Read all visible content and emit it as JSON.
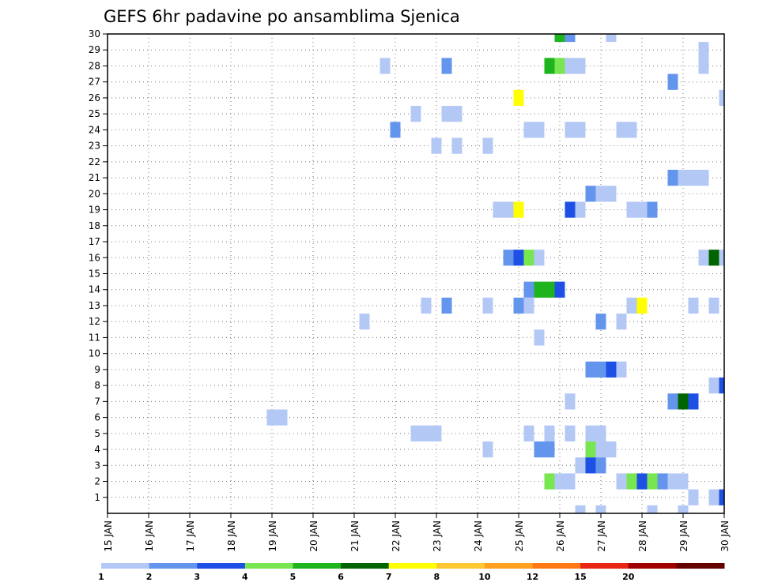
{
  "chart_data": {
    "type": "heatmap",
    "title": "GEFS 6hr padavine po ansamblima Sjenica",
    "xlabel": "",
    "ylabel": "",
    "x_ticks": [
      "15 JAN",
      "16 JAN",
      "17 JAN",
      "18 JAN",
      "19 JAN",
      "20 JAN",
      "21 JAN",
      "22 JAN",
      "23 JAN",
      "24 JAN",
      "25 JAN",
      "26 JAN",
      "27 JAN",
      "28 JAN",
      "29 JAN",
      "30 JAN"
    ],
    "y_ticks": [
      "1",
      "2",
      "3",
      "4",
      "5",
      "6",
      "7",
      "8",
      "9",
      "10",
      "11",
      "12",
      "13",
      "14",
      "15",
      "16",
      "17",
      "18",
      "19",
      "20",
      "21",
      "22",
      "23",
      "24",
      "25",
      "26",
      "27",
      "28",
      "29",
      "30"
    ],
    "x_range_days": [
      15,
      30
    ],
    "y_range_members": [
      0,
      30
    ],
    "legend": {
      "levels": [
        "1",
        "2",
        "3",
        "4",
        "5",
        "6",
        "7",
        "8",
        "10",
        "12",
        "15",
        "20"
      ],
      "colors": [
        "#b4c8f5",
        "#6495ed",
        "#1e50e6",
        "#78e650",
        "#1eb41e",
        "#006400",
        "#ffff00",
        "#ffc832",
        "#ffa01e",
        "#ff7814",
        "#e62814",
        "#a00000",
        "#640000"
      ]
    },
    "cells": [
      {
        "member": 30,
        "day": 26.0,
        "level": 5
      },
      {
        "member": 30,
        "day": 26.25,
        "level": 2
      },
      {
        "member": 30,
        "day": 27.25,
        "level": 1
      },
      {
        "member": 29,
        "day": 29.5,
        "level": 1
      },
      {
        "member": 28,
        "day": 21.75,
        "level": 1
      },
      {
        "member": 28,
        "day": 23.25,
        "level": 2
      },
      {
        "member": 28,
        "day": 25.75,
        "level": 5
      },
      {
        "member": 28,
        "day": 26.0,
        "level": 4
      },
      {
        "member": 28,
        "day": 26.25,
        "level": 1
      },
      {
        "member": 28,
        "day": 26.5,
        "level": 1
      },
      {
        "member": 28,
        "day": 29.5,
        "level": 1
      },
      {
        "member": 27,
        "day": 28.75,
        "level": 2
      },
      {
        "member": 26,
        "day": 25.0,
        "level": 7
      },
      {
        "member": 26,
        "day": 30.0,
        "level": 1
      },
      {
        "member": 25,
        "day": 22.5,
        "level": 1
      },
      {
        "member": 25,
        "day": 23.25,
        "level": 1
      },
      {
        "member": 25,
        "day": 23.5,
        "level": 1
      },
      {
        "member": 24,
        "day": 22.0,
        "level": 2
      },
      {
        "member": 24,
        "day": 25.25,
        "level": 1
      },
      {
        "member": 24,
        "day": 25.5,
        "level": 1
      },
      {
        "member": 24,
        "day": 26.25,
        "level": 1
      },
      {
        "member": 24,
        "day": 26.5,
        "level": 1
      },
      {
        "member": 24,
        "day": 27.5,
        "level": 1
      },
      {
        "member": 24,
        "day": 27.75,
        "level": 1
      },
      {
        "member": 23,
        "day": 23.0,
        "level": 1
      },
      {
        "member": 23,
        "day": 23.5,
        "level": 1
      },
      {
        "member": 23,
        "day": 24.25,
        "level": 1
      },
      {
        "member": 21,
        "day": 29.0,
        "level": 1
      },
      {
        "member": 21,
        "day": 28.75,
        "level": 2
      },
      {
        "member": 21,
        "day": 29.25,
        "level": 1
      },
      {
        "member": 21,
        "day": 29.5,
        "level": 1
      },
      {
        "member": 20,
        "day": 26.75,
        "level": 2
      },
      {
        "member": 20,
        "day": 27.0,
        "level": 1
      },
      {
        "member": 20,
        "day": 27.25,
        "level": 1
      },
      {
        "member": 19,
        "day": 24.5,
        "level": 1
      },
      {
        "member": 19,
        "day": 24.75,
        "level": 1
      },
      {
        "member": 19,
        "day": 25.0,
        "level": 7
      },
      {
        "member": 19,
        "day": 26.25,
        "level": 3
      },
      {
        "member": 19,
        "day": 26.5,
        "level": 1
      },
      {
        "member": 19,
        "day": 27.75,
        "level": 1
      },
      {
        "member": 19,
        "day": 28.0,
        "level": 1
      },
      {
        "member": 19,
        "day": 28.25,
        "level": 2
      },
      {
        "member": 16,
        "day": 24.75,
        "level": 2
      },
      {
        "member": 16,
        "day": 25.0,
        "level": 3
      },
      {
        "member": 16,
        "day": 25.25,
        "level": 4
      },
      {
        "member": 16,
        "day": 25.5,
        "level": 1
      },
      {
        "member": 16,
        "day": 29.5,
        "level": 1
      },
      {
        "member": 16,
        "day": 29.75,
        "level": 6
      },
      {
        "member": 16,
        "day": 30.0,
        "level": 1
      },
      {
        "member": 14,
        "day": 25.25,
        "level": 2
      },
      {
        "member": 14,
        "day": 25.5,
        "level": 5
      },
      {
        "member": 14,
        "day": 25.75,
        "level": 5
      },
      {
        "member": 14,
        "day": 26.0,
        "level": 3
      },
      {
        "member": 13,
        "day": 22.75,
        "level": 1
      },
      {
        "member": 13,
        "day": 23.25,
        "level": 2
      },
      {
        "member": 13,
        "day": 24.25,
        "level": 1
      },
      {
        "member": 13,
        "day": 25.0,
        "level": 2
      },
      {
        "member": 13,
        "day": 25.25,
        "level": 1
      },
      {
        "member": 13,
        "day": 27.75,
        "level": 1
      },
      {
        "member": 13,
        "day": 28.0,
        "level": 7
      },
      {
        "member": 13,
        "day": 29.25,
        "level": 1
      },
      {
        "member": 13,
        "day": 29.75,
        "level": 1
      },
      {
        "member": 12,
        "day": 21.25,
        "level": 1
      },
      {
        "member": 12,
        "day": 27.0,
        "level": 2
      },
      {
        "member": 12,
        "day": 27.5,
        "level": 1
      },
      {
        "member": 11,
        "day": 25.5,
        "level": 1
      },
      {
        "member": 9,
        "day": 26.75,
        "level": 2
      },
      {
        "member": 9,
        "day": 27.0,
        "level": 2
      },
      {
        "member": 9,
        "day": 27.25,
        "level": 3
      },
      {
        "member": 9,
        "day": 27.5,
        "level": 1
      },
      {
        "member": 8,
        "day": 29.75,
        "level": 1
      },
      {
        "member": 8,
        "day": 30.0,
        "level": 3
      },
      {
        "member": 7,
        "day": 26.25,
        "level": 1
      },
      {
        "member": 7,
        "day": 28.75,
        "level": 2
      },
      {
        "member": 7,
        "day": 29.0,
        "level": 6
      },
      {
        "member": 7,
        "day": 29.25,
        "level": 3
      },
      {
        "member": 6,
        "day": 19.0,
        "level": 1
      },
      {
        "member": 6,
        "day": 19.25,
        "level": 1
      },
      {
        "member": 5,
        "day": 22.5,
        "level": 1
      },
      {
        "member": 5,
        "day": 22.75,
        "level": 1
      },
      {
        "member": 5,
        "day": 23.0,
        "level": 1
      },
      {
        "member": 5,
        "day": 25.25,
        "level": 1
      },
      {
        "member": 5,
        "day": 25.75,
        "level": 1
      },
      {
        "member": 5,
        "day": 26.25,
        "level": 1
      },
      {
        "member": 5,
        "day": 26.75,
        "level": 1
      },
      {
        "member": 5,
        "day": 27.0,
        "level": 1
      },
      {
        "member": 4,
        "day": 24.25,
        "level": 1
      },
      {
        "member": 4,
        "day": 25.5,
        "level": 2
      },
      {
        "member": 4,
        "day": 25.75,
        "level": 2
      },
      {
        "member": 4,
        "day": 26.75,
        "level": 4
      },
      {
        "member": 4,
        "day": 27.0,
        "level": 1
      },
      {
        "member": 4,
        "day": 27.25,
        "level": 1
      },
      {
        "member": 3,
        "day": 26.5,
        "level": 1
      },
      {
        "member": 3,
        "day": 26.75,
        "level": 3
      },
      {
        "member": 3,
        "day": 27.0,
        "level": 2
      },
      {
        "member": 2,
        "day": 25.75,
        "level": 4
      },
      {
        "member": 2,
        "day": 26.0,
        "level": 1
      },
      {
        "member": 2,
        "day": 26.25,
        "level": 1
      },
      {
        "member": 2,
        "day": 27.5,
        "level": 1
      },
      {
        "member": 2,
        "day": 27.75,
        "level": 4
      },
      {
        "member": 2,
        "day": 28.0,
        "level": 3
      },
      {
        "member": 2,
        "day": 28.25,
        "level": 4
      },
      {
        "member": 2,
        "day": 28.5,
        "level": 2
      },
      {
        "member": 2,
        "day": 28.75,
        "level": 1
      },
      {
        "member": 2,
        "day": 29.0,
        "level": 1
      },
      {
        "member": 1,
        "day": 29.25,
        "level": 1
      },
      {
        "member": 1,
        "day": 29.75,
        "level": 1
      },
      {
        "member": 1,
        "day": 30.0,
        "level": 3
      },
      {
        "member": 0,
        "day": 26.5,
        "level": 1
      },
      {
        "member": 0,
        "day": 27.0,
        "level": 1
      },
      {
        "member": 0,
        "day": 28.25,
        "level": 1
      },
      {
        "member": 0,
        "day": 29.0,
        "level": 1
      }
    ]
  }
}
